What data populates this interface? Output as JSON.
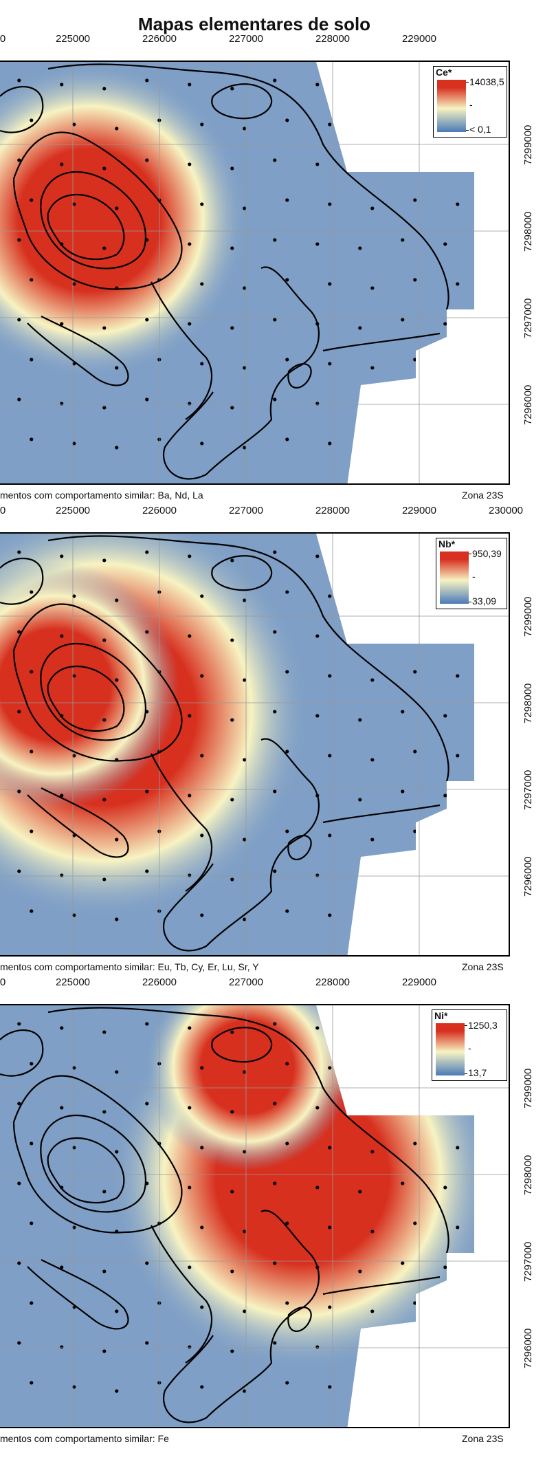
{
  "title": "Mapas elementares de solo",
  "panels": [
    {
      "element": "Ce*",
      "legend_max": "14038,5",
      "legend_mid": "-",
      "legend_min": "< 0,1",
      "x_ticks": [
        "0",
        "225000",
        "226000",
        "227000",
        "228000",
        "229000"
      ],
      "y_ticks": [
        "7299000",
        "7298000",
        "7297000",
        "7296000"
      ],
      "caption": "mentos com comportamento similar: Ba, Nd, La",
      "zone": "Zona 23S",
      "hotspot": "west"
    },
    {
      "element": "Nb*",
      "legend_max": "950,39",
      "legend_mid": "-",
      "legend_min": "33,09",
      "x_ticks": [
        "0",
        "225000",
        "226000",
        "227000",
        "228000",
        "229000",
        "230000"
      ],
      "y_ticks": [
        "7299000",
        "7298000",
        "7297000",
        "7296000"
      ],
      "caption": "mentos com comportamento similar: Eu, Tb, Cy, Er, Lu, Sr, Y",
      "zone": "Zona 23S",
      "hotspot": "west-broad"
    },
    {
      "element": "Ni*",
      "legend_max": "1250,3",
      "legend_mid": "-",
      "legend_min": "13,7",
      "x_ticks": [
        "0",
        "225000",
        "226000",
        "227000",
        "228000",
        "229000"
      ],
      "y_ticks": [
        "7299000",
        "7298000",
        "7297000",
        "7296000"
      ],
      "caption": "mentos com comportamento similar: Fe",
      "zone": "Zona 23S",
      "hotspot": "east"
    }
  ],
  "colors": {
    "high": "#d7301f",
    "mid": "#f7f3c2",
    "low": "#4a7ab8",
    "base": "#7f9fc6"
  }
}
